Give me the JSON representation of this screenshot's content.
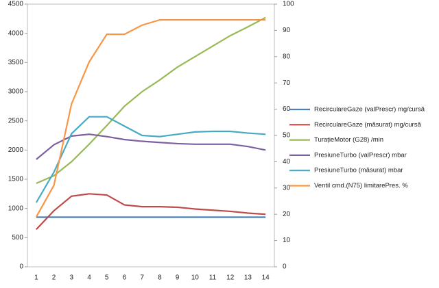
{
  "chart_data": {
    "type": "line",
    "categories": [
      "1",
      "2",
      "3",
      "4",
      "5",
      "6",
      "7",
      "8",
      "9",
      "10",
      "11",
      "12",
      "13",
      "14"
    ],
    "ylim": [
      0,
      4500
    ],
    "yticks": [
      0,
      500,
      1000,
      1500,
      2000,
      2500,
      3000,
      3500,
      4000,
      4500
    ],
    "y2lim": [
      0,
      100
    ],
    "y2ticks": [
      0,
      10,
      20,
      30,
      40,
      50,
      60,
      70,
      80,
      90,
      100
    ],
    "series": [
      {
        "name": "RecirculareGaze (valPrescr)  mg/cursă",
        "color": "#4a7ebb",
        "values": [
          850,
          850,
          850,
          850,
          850,
          850,
          850,
          850,
          850,
          850,
          850,
          850,
          850,
          850
        ]
      },
      {
        "name": "RecirculareGaze (măsurat)  mg/cursă",
        "color": "#be4b48",
        "values": [
          640,
          960,
          1210,
          1250,
          1230,
          1060,
          1030,
          1030,
          1020,
          990,
          970,
          950,
          920,
          900
        ]
      },
      {
        "name": "TurațieMotor (G28)  /min",
        "color": "#98b954",
        "values": [
          1430,
          1560,
          1800,
          2100,
          2420,
          2750,
          3000,
          3200,
          3420,
          3600,
          3780,
          3960,
          4110,
          4270
        ]
      },
      {
        "name": "PresiuneTurbo (valPrescr)  mbar",
        "color": "#7d60a0",
        "values": [
          1840,
          2090,
          2240,
          2270,
          2230,
          2180,
          2150,
          2130,
          2110,
          2100,
          2100,
          2100,
          2060,
          2000
        ]
      },
      {
        "name": "PresiuneTurbo (măsurat)  mbar",
        "color": "#46aac5",
        "values": [
          1100,
          1620,
          2280,
          2570,
          2570,
          2410,
          2250,
          2230,
          2270,
          2310,
          2320,
          2320,
          2290,
          2270
        ]
      },
      {
        "name": "Ventil cmd.(N75) limitarePres.  %",
        "color": "#f79646",
        "axis": "y2",
        "values": [
          19,
          31,
          62,
          78,
          88.5,
          88.5,
          92,
          94,
          94,
          94,
          94,
          94,
          94,
          94
        ]
      }
    ]
  }
}
